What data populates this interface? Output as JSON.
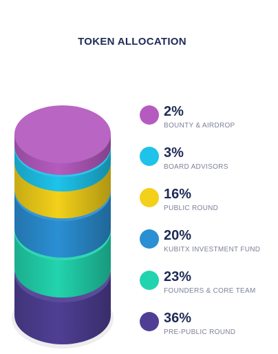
{
  "chart_data": {
    "type": "stacked-cylinder",
    "title": "TOKEN ALLOCATION",
    "unit": "%",
    "series": [
      {
        "label": "BOUNTY & AIRDROP",
        "value": 2,
        "display": "2%",
        "color": "#b55bbf"
      },
      {
        "label": "BOARD ADVISORS",
        "value": 3,
        "display": "3%",
        "color": "#1ec3ea"
      },
      {
        "label": "PUBLIC ROUND",
        "value": 16,
        "display": "16%",
        "color": "#f3d01a"
      },
      {
        "label": "KUBITX INVESTMENT FUND",
        "value": 20,
        "display": "20%",
        "color": "#2b8fd3"
      },
      {
        "label": "FOUNDERS & CORE TEAM",
        "value": 23,
        "display": "23%",
        "color": "#22d4ad"
      },
      {
        "label": "PRE-PUBLIC ROUND",
        "value": 36,
        "display": "36%",
        "color": "#4f3f94"
      }
    ]
  }
}
